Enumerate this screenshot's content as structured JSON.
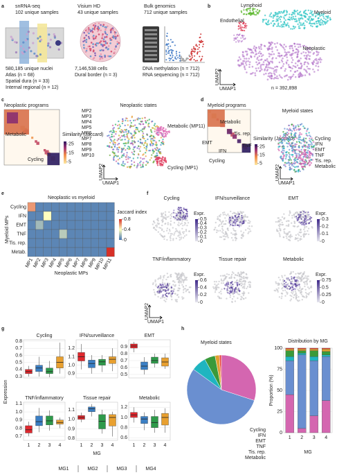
{
  "panel_labels": [
    "a",
    "b",
    "c",
    "d",
    "e",
    "f",
    "g",
    "h"
  ],
  "a": {
    "snrna": {
      "title": "snRNA-seq",
      "subtitle": "102 unique samples",
      "details": [
        "580,185 unique nuclei",
        "Atlas (n = 68)",
        "Spatial dura (n = 33)",
        "Internal regional (n = 12)"
      ]
    },
    "visium": {
      "title": "Visium HD",
      "subtitle": "43 unique samples",
      "details": [
        "7,146,538 cells",
        "Dural border (n = 3)"
      ]
    },
    "bulk": {
      "title": "Bulk genomics",
      "subtitle": "712 unique samples",
      "details": [
        "DNA methylation (n = 712)",
        "RNA sequencing (n = 712)"
      ]
    }
  },
  "b": {
    "labels": [
      {
        "text": "Lymphoid",
        "color": "#5cb82e"
      },
      {
        "text": "Myeloid",
        "color": "#2ec4c4"
      },
      {
        "text": "Endothelial",
        "color": "#e0405a"
      },
      {
        "text": "Neoplastic",
        "color": "#b070c8"
      }
    ],
    "x_label": "UMAP1",
    "y_label": "UMAP2",
    "n_label": "n = 392,898"
  },
  "c": {
    "heatmap_title": "Neoplastic programs",
    "heatmap_labels": [
      "Metabolic",
      "Cycling"
    ],
    "colorbar_title": "Similarity (Jaccard)",
    "colorbar_lim": [
      3,
      28
    ],
    "colorbar_ticks": [
      25,
      15,
      5
    ],
    "umap_title": "Neoplastic states",
    "legend": [
      {
        "name": "MP2",
        "color": "#e89a30"
      },
      {
        "name": "MP3",
        "color": "#c8b020"
      },
      {
        "name": "MP4",
        "color": "#6aa83a"
      },
      {
        "name": "MP5",
        "color": "#30b060"
      },
      {
        "name": "MP6",
        "color": "#2aa8a0"
      },
      {
        "name": "MP7",
        "color": "#3a88c8"
      },
      {
        "name": "MP8",
        "color": "#6a6ad0"
      },
      {
        "name": "MP9",
        "color": "#a060c0"
      },
      {
        "name": "MP10",
        "color": "#d060a0"
      }
    ],
    "umap_labels": [
      {
        "text": "Metabolic (MP11)",
        "color": "#e070b8"
      },
      {
        "text": "Cycling (MP1)",
        "color": "#e04060"
      }
    ],
    "x_label": "UMAP1",
    "y_label": "UMAP2"
  },
  "d": {
    "heatmap_title": "Myeloid programs",
    "heatmap_labels": [
      "Metabolic",
      "Tis. rep.",
      "TNF",
      "EMT",
      "IFN",
      "Cycling"
    ],
    "colorbar_title": "Similarity (Jaccard)",
    "colorbar_lim": [
      3,
      28
    ],
    "colorbar_ticks": [
      25,
      15,
      5
    ],
    "umap_title": "Myeloid states",
    "legend": [
      {
        "name": "Cycling",
        "color": "#e8453c"
      },
      {
        "name": "IFN",
        "color": "#e0a030"
      },
      {
        "name": "EMT",
        "color": "#3a9a3a"
      },
      {
        "name": "TNF",
        "color": "#1fb5c0"
      },
      {
        "name": "Tis. rep.",
        "color": "#6a8fd0"
      },
      {
        "name": "Metabolic",
        "color": "#d466b0"
      }
    ],
    "x_label": "UMAP1",
    "y_label": "UMAP2"
  },
  "f": {
    "expr_label": "Expr.",
    "x_label": "UMAP1",
    "y_label": "UMAP2",
    "maps": [
      {
        "title": "Cycling",
        "colorbar_lim": [
          0,
          0.5
        ],
        "colorbar_ticks": [
          0.5,
          0.4,
          0.3,
          0.2,
          0.1,
          0
        ]
      },
      {
        "title": "IFN/surveillance"
      },
      {
        "title": "EMT",
        "colorbar_lim": [
          0,
          0.3
        ],
        "colorbar_ticks": [
          0.3,
          0.2,
          0.1,
          0
        ]
      },
      {
        "title": "TNF/inflammatory",
        "colorbar_lim": [
          0,
          0.6
        ],
        "colorbar_ticks": [
          0.6,
          0.4,
          0.2,
          0
        ]
      },
      {
        "title": "Tissue repair"
      },
      {
        "title": "Metabolic",
        "colorbar_lim": [
          0,
          0.75
        ],
        "colorbar_ticks": [
          0.75,
          0.5,
          0.25,
          0
        ]
      }
    ]
  },
  "g": {
    "y_label": "Expression",
    "x_label": "MG"
  },
  "mg_legend": [
    {
      "name": "MG1",
      "color": "#e0282e"
    },
    {
      "name": "MG2",
      "color": "#3b7fc4"
    },
    {
      "name": "MG3",
      "color": "#2e9a4a"
    },
    {
      "name": "MG4",
      "color": "#e8a030"
    }
  ],
  "chart_data": [
    {
      "type": "heatmap",
      "title": "Neoplastic vs myeloid",
      "x_label": "Neoplastic MPs",
      "y_label": "Myeloid MPs",
      "x_categories": [
        "MP1",
        "MP2",
        "MP3",
        "MP4",
        "MP5",
        "MP6",
        "MP7",
        "MP8",
        "MP9",
        "MP10",
        "MP11"
      ],
      "y_categories": [
        "Cycling",
        "IFN",
        "EMT",
        "TNF",
        "Tis. rep.",
        "Metab."
      ],
      "values": [
        [
          0.6,
          0.05,
          0.05,
          0.05,
          0.05,
          0.05,
          0.05,
          0.05,
          0.05,
          0.05,
          0.05
        ],
        [
          0.05,
          0.05,
          0.4,
          0.05,
          0.05,
          0.05,
          0.05,
          0.05,
          0.05,
          0.05,
          0.05
        ],
        [
          0.05,
          0.2,
          0.05,
          0.05,
          0.05,
          0.05,
          0.05,
          0.05,
          0.05,
          0.05,
          0.05
        ],
        [
          0.05,
          0.05,
          0.05,
          0.05,
          0.25,
          0.05,
          0.05,
          0.05,
          0.05,
          0.05,
          0.05
        ],
        [
          0.05,
          0.05,
          0.05,
          0.05,
          0.05,
          0.05,
          0.05,
          0.05,
          0.05,
          0.05,
          0.05
        ],
        [
          0.05,
          0.05,
          0.05,
          0.05,
          0.05,
          0.05,
          0.05,
          0.05,
          0.05,
          0.05,
          0.8
        ]
      ],
      "colorbar_title": "Jaccard index",
      "colorbar_lim": [
        0,
        0.8
      ],
      "colorbar_ticks": [
        0.8,
        0.4,
        0
      ]
    },
    {
      "type": "box",
      "title": "Cycling",
      "ylim": [
        0.28,
        0.82
      ],
      "yticks": [
        0.3,
        0.4,
        0.5,
        0.6,
        0.7,
        0.8
      ],
      "boxes": [
        {
          "low": 0.3,
          "q1": 0.34,
          "median": 0.37,
          "q3": 0.4,
          "high": 0.45
        },
        {
          "low": 0.3,
          "q1": 0.37,
          "median": 0.42,
          "q3": 0.46,
          "high": 0.58
        },
        {
          "low": 0.29,
          "q1": 0.34,
          "median": 0.37,
          "q3": 0.42,
          "high": 0.52
        },
        {
          "low": 0.34,
          "q1": 0.42,
          "median": 0.5,
          "q3": 0.58,
          "high": 0.78
        }
      ]
    },
    {
      "type": "box",
      "title": "IFN/surveillance",
      "ylim": [
        0.85,
        1.3
      ],
      "yticks": [
        0.9,
        {
          "value": 1,
          "label": "1.0"
        },
        1.1,
        1.2
      ],
      "boxes": [
        {
          "low": 0.95,
          "q1": 1.05,
          "median": 1.1,
          "q3": 1.15,
          "high": 1.25
        },
        {
          "low": 0.9,
          "q1": 0.97,
          "median": 1.02,
          "q3": 1.06,
          "high": 1.12
        },
        {
          "low": 0.92,
          "q1": 1.0,
          "median": 1.04,
          "q3": 1.07,
          "high": 1.12
        },
        {
          "low": 0.93,
          "q1": 1.02,
          "median": 1.07,
          "q3": 1.1,
          "high": 1.2
        }
      ]
    },
    {
      "type": "box",
      "title": "EMT",
      "ylim": [
        0.45,
        1.0
      ],
      "yticks": [
        0.5,
        0.6,
        0.7,
        0.8,
        0.9
      ],
      "boxes": [
        {
          "low": 0.82,
          "q1": 0.88,
          "median": 0.91,
          "q3": 0.94,
          "high": 0.97
        },
        {
          "low": 0.5,
          "q1": 0.57,
          "median": 0.62,
          "q3": 0.68,
          "high": 0.75
        },
        {
          "low": 0.6,
          "q1": 0.66,
          "median": 0.7,
          "q3": 0.75,
          "high": 0.8
        },
        {
          "low": 0.58,
          "q1": 0.62,
          "median": 0.68,
          "q3": 0.74,
          "high": 0.8
        }
      ]
    },
    {
      "type": "box",
      "title": "TNF/inflammatory",
      "categories": [
        "1",
        "2",
        "3",
        "4"
      ],
      "ylim": [
        0.65,
        1.12
      ],
      "yticks": [
        0.7,
        0.8,
        0.9,
        {
          "value": 1,
          "label": "1.0"
        },
        1.1
      ],
      "boxes": [
        {
          "low": 0.7,
          "q1": 0.74,
          "median": 0.78,
          "q3": 0.83,
          "high": 0.88
        },
        {
          "low": 0.75,
          "q1": 0.83,
          "median": 0.88,
          "q3": 0.95,
          "high": 1.05
        },
        {
          "low": 0.77,
          "q1": 0.84,
          "median": 0.89,
          "q3": 0.95,
          "high": 1.02
        },
        {
          "low": 0.8,
          "q1": 0.85,
          "median": 0.87,
          "q3": 0.9,
          "high": 0.93
        }
      ]
    },
    {
      "type": "box",
      "title": "Tissue repair",
      "categories": [
        "1",
        "2",
        "3",
        "4"
      ],
      "ylim": [
        0.78,
        1.18
      ],
      "yticks": [
        0.8,
        0.9,
        {
          "value": 1,
          "label": "1.0"
        },
        1.1
      ],
      "boxes": [
        {
          "low": 0.97,
          "q1": 1.0,
          "median": 1.02,
          "q3": 1.04,
          "high": 1.07
        },
        {
          "low": 1.03,
          "q1": 1.08,
          "median": 1.11,
          "q3": 1.13,
          "high": 1.16
        },
        {
          "low": 0.85,
          "q1": 0.9,
          "median": 0.98,
          "q3": 1.05,
          "high": 1.1
        },
        {
          "low": 0.82,
          "q1": 0.93,
          "median": 1.02,
          "q3": 1.05,
          "high": 1.08
        }
      ]
    },
    {
      "type": "box",
      "title": "Metabolic",
      "categories": [
        "1",
        "2",
        "3",
        "4"
      ],
      "ylim": [
        0.55,
        1.3
      ],
      "yticks": [
        0.6,
        0.8,
        {
          "value": 1,
          "label": "1.0"
        },
        1.2
      ],
      "boxes": [
        {
          "low": 0.9,
          "q1": 1.0,
          "median": 1.05,
          "q3": 1.1,
          "high": 1.2
        },
        {
          "low": 0.75,
          "q1": 0.88,
          "median": 0.97,
          "q3": 1.02,
          "high": 1.1
        },
        {
          "low": 0.7,
          "q1": 0.8,
          "median": 0.9,
          "q3": 1.02,
          "high": 1.15
        },
        {
          "low": 0.7,
          "q1": 0.85,
          "median": 1.0,
          "q3": 1.08,
          "high": 1.18
        }
      ]
    },
    {
      "type": "pie",
      "title": "Myeloid states",
      "categories": [
        "Cycling",
        "IFN",
        "EMT",
        "TNF",
        "Tis. rep.",
        "Metabolic"
      ],
      "values": [
        1,
        2,
        5,
        7,
        55,
        30
      ],
      "colors": [
        "#e8453c",
        "#e0a030",
        "#3a9a3a",
        "#1fb5c0",
        "#6a8fd0",
        "#d466b0"
      ]
    },
    {
      "type": "stacked_bar",
      "title": "Distribution by MG",
      "x_label": "MG",
      "y_label": "Proportion (%)",
      "categories": [
        "1",
        "2",
        "3",
        "4"
      ],
      "ylim": [
        0,
        100
      ],
      "yticks": [
        0,
        25,
        50,
        75,
        100
      ],
      "series": [
        {
          "color": "#d466b0",
          "values": [
            45,
            5,
            20,
            38
          ]
        },
        {
          "color": "#6a8fd0",
          "values": [
            40,
            87,
            65,
            52
          ]
        },
        {
          "color": "#1fb5c0",
          "values": [
            5,
            2,
            5,
            2
          ]
        },
        {
          "color": "#3a9a3a",
          "values": [
            7,
            3,
            7,
            4
          ]
        },
        {
          "color": "#e0a030",
          "values": [
            2,
            2,
            2,
            3
          ]
        },
        {
          "color": "#e8453c",
          "values": [
            1,
            1,
            1,
            1
          ]
        }
      ]
    }
  ]
}
